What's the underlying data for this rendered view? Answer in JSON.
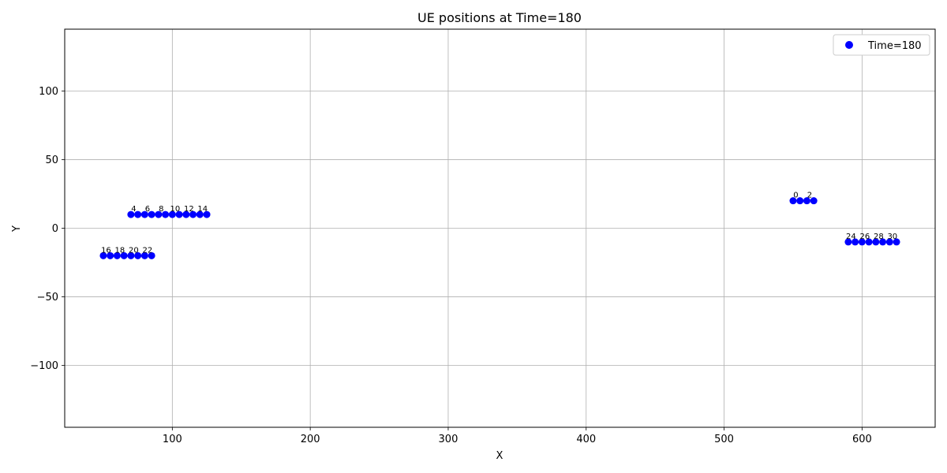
{
  "chart_data": {
    "type": "scatter",
    "title": "UE positions at Time=180",
    "xlabel": "X",
    "ylabel": "Y",
    "xlim": [
      22,
      653
    ],
    "ylim": [
      -145,
      145
    ],
    "xticks": [
      100,
      200,
      300,
      400,
      500,
      600
    ],
    "yticks": [
      -100,
      -50,
      0,
      50,
      100
    ],
    "xtick_labels": [
      "100",
      "200",
      "300",
      "400",
      "500",
      "600"
    ],
    "ytick_labels": [
      "−100",
      "−50",
      "0",
      "50",
      "100"
    ],
    "grid": true,
    "legend_position": "top-right",
    "series": [
      {
        "name": "Time=180",
        "color": "#0000ff",
        "points": [
          {
            "id": 0,
            "x": 550,
            "y": 20
          },
          {
            "id": 1,
            "x": 555,
            "y": 20
          },
          {
            "id": 2,
            "x": 560,
            "y": 20
          },
          {
            "id": 3,
            "x": 565,
            "y": 20
          },
          {
            "id": 4,
            "x": 70,
            "y": 10
          },
          {
            "id": 5,
            "x": 75,
            "y": 10
          },
          {
            "id": 6,
            "x": 80,
            "y": 10
          },
          {
            "id": 7,
            "x": 85,
            "y": 10
          },
          {
            "id": 8,
            "x": 90,
            "y": 10
          },
          {
            "id": 9,
            "x": 95,
            "y": 10
          },
          {
            "id": 10,
            "x": 100,
            "y": 10
          },
          {
            "id": 11,
            "x": 105,
            "y": 10
          },
          {
            "id": 12,
            "x": 110,
            "y": 10
          },
          {
            "id": 13,
            "x": 115,
            "y": 10
          },
          {
            "id": 14,
            "x": 120,
            "y": 10
          },
          {
            "id": 15,
            "x": 125,
            "y": 10
          },
          {
            "id": 16,
            "x": 50,
            "y": -20
          },
          {
            "id": 17,
            "x": 55,
            "y": -20
          },
          {
            "id": 18,
            "x": 60,
            "y": -20
          },
          {
            "id": 19,
            "x": 65,
            "y": -20
          },
          {
            "id": 20,
            "x": 70,
            "y": -20
          },
          {
            "id": 21,
            "x": 75,
            "y": -20
          },
          {
            "id": 22,
            "x": 80,
            "y": -20
          },
          {
            "id": 23,
            "x": 85,
            "y": -20
          },
          {
            "id": 24,
            "x": 590,
            "y": -10
          },
          {
            "id": 25,
            "x": 595,
            "y": -10
          },
          {
            "id": 26,
            "x": 600,
            "y": -10
          },
          {
            "id": 27,
            "x": 605,
            "y": -10
          },
          {
            "id": 28,
            "x": 610,
            "y": -10
          },
          {
            "id": 29,
            "x": 615,
            "y": -10
          },
          {
            "id": 30,
            "x": 620,
            "y": -10
          },
          {
            "id": 31,
            "x": 625,
            "y": -10
          }
        ]
      }
    ],
    "point_labels": [
      {
        "text": "0",
        "x": 552,
        "y": 20
      },
      {
        "text": "2",
        "x": 562,
        "y": 20
      },
      {
        "text": "4",
        "x": 72,
        "y": 10
      },
      {
        "text": "6",
        "x": 82,
        "y": 10
      },
      {
        "text": "8",
        "x": 92,
        "y": 10
      },
      {
        "text": "10",
        "x": 102,
        "y": 10
      },
      {
        "text": "12",
        "x": 112,
        "y": 10
      },
      {
        "text": "14",
        "x": 122,
        "y": 10
      },
      {
        "text": "16",
        "x": 52,
        "y": -20
      },
      {
        "text": "18",
        "x": 62,
        "y": -20
      },
      {
        "text": "20",
        "x": 72,
        "y": -20
      },
      {
        "text": "22",
        "x": 82,
        "y": -20
      },
      {
        "text": "24",
        "x": 592,
        "y": -10
      },
      {
        "text": "26",
        "x": 602,
        "y": -10
      },
      {
        "text": "28",
        "x": 612,
        "y": -10
      },
      {
        "text": "30",
        "x": 622,
        "y": -10
      }
    ]
  }
}
